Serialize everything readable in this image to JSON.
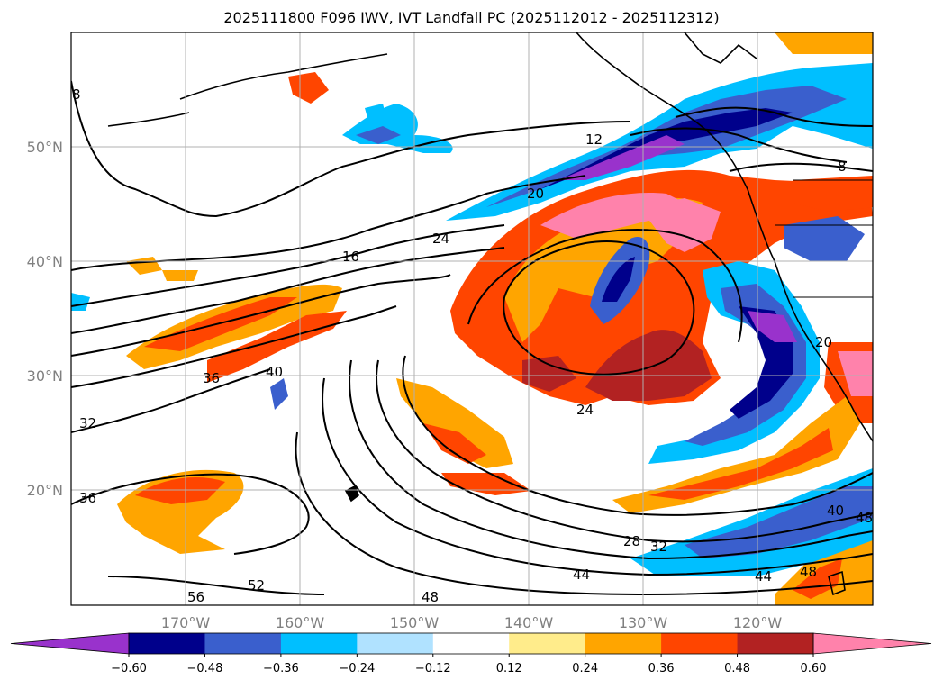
{
  "title": "2025111800 F096 IWV, IVT Landfall PC (2025112012 - 2025112312)",
  "lat_labels": [
    "50°N",
    "40°N",
    "30°N",
    "20°N"
  ],
  "lon_labels": [
    "170°W",
    "160°W",
    "150°W",
    "140°W",
    "130°W",
    "120°W"
  ],
  "colorbar": {
    "colors": [
      "#9932cc",
      "#00008b",
      "#3a5fcd",
      "#00bfff",
      "#b0e2ff",
      "#ffffff",
      "#ffec8b",
      "#ffa500",
      "#ff4500",
      "#b22222",
      "#ff82ab"
    ],
    "ticks": [
      "−0.60",
      "−0.48",
      "−0.36",
      "−0.24",
      "−0.12",
      "0.12",
      "0.24",
      "0.36",
      "0.48",
      "0.60"
    ]
  },
  "contour_labels": [
    "8",
    "12",
    "16",
    "20",
    "24",
    "24",
    "28",
    "32",
    "32",
    "36",
    "36",
    "40",
    "40",
    "44",
    "44",
    "48",
    "48",
    "48",
    "52",
    "56",
    "20",
    "8"
  ]
}
